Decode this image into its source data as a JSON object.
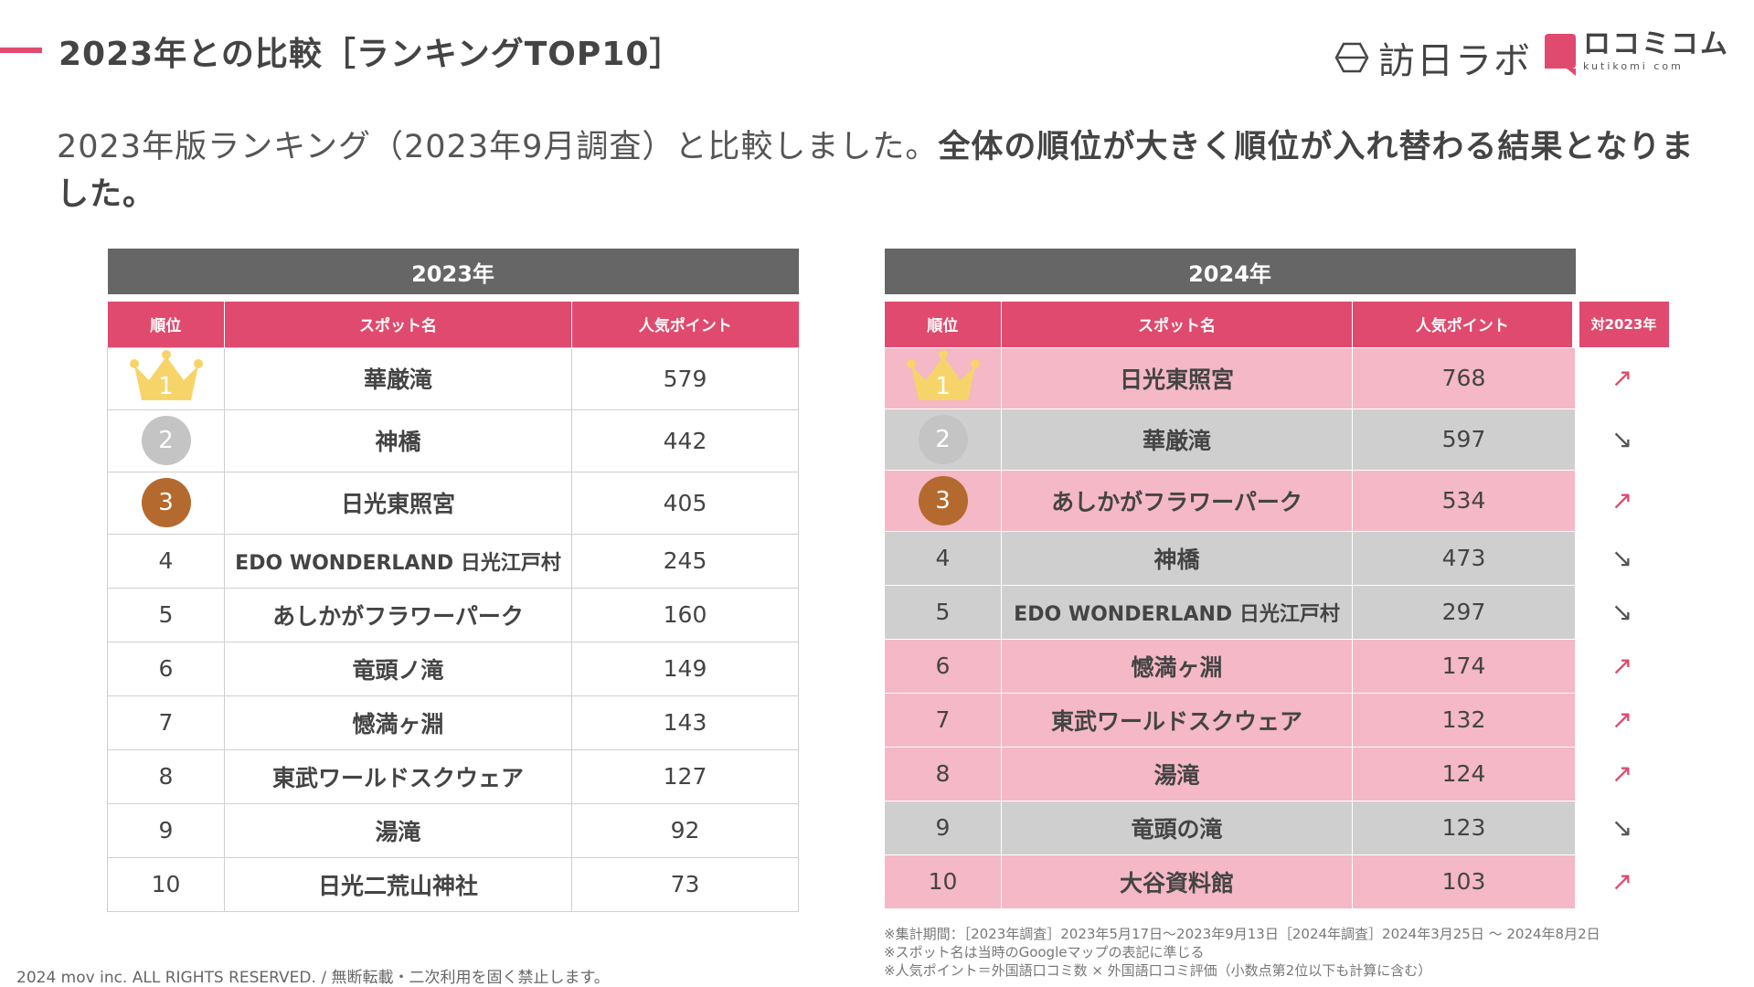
{
  "header": {
    "title": "2023年との比較［ランキングTOP10］",
    "logo_houbei": "訪日ラボ",
    "logo_kuchikomi": "ロコミコム",
    "logo_kuchikomi_sub": "kutikomi com"
  },
  "lead": {
    "normal": "2023年版ランキング（2023年9月調査）と比較しました。",
    "bold": "全体の順位が大きく順位が入れ替わる結果となりました。"
  },
  "table_2023": {
    "year": "2023年",
    "headers": [
      "順位",
      "スポット名",
      "人気ポイント"
    ],
    "rows": [
      {
        "rank": "1",
        "name": "華厳滝",
        "points": "579"
      },
      {
        "rank": "2",
        "name": "神橋",
        "points": "442"
      },
      {
        "rank": "3",
        "name": "日光東照宮",
        "points": "405"
      },
      {
        "rank": "4",
        "name": "EDO WONDERLAND 日光江戸村",
        "points": "245"
      },
      {
        "rank": "5",
        "name": "あしかがフラワーパーク",
        "points": "160"
      },
      {
        "rank": "6",
        "name": "竜頭ノ滝",
        "points": "149"
      },
      {
        "rank": "7",
        "name": "憾満ヶ淵",
        "points": "143"
      },
      {
        "rank": "8",
        "name": "東武ワールドスクウェア",
        "points": "127"
      },
      {
        "rank": "9",
        "name": "湯滝",
        "points": "92"
      },
      {
        "rank": "10",
        "name": "日光二荒山神社",
        "points": "73"
      }
    ]
  },
  "table_2024": {
    "year": "2024年",
    "headers": [
      "順位",
      "スポット名",
      "人気ポイント"
    ],
    "trend_header": "対2023年",
    "rows": [
      {
        "rank": "1",
        "name": "日光東照宮",
        "points": "768",
        "trend": "↗",
        "dir": "up"
      },
      {
        "rank": "2",
        "name": "華厳滝",
        "points": "597",
        "trend": "↘",
        "dir": "down"
      },
      {
        "rank": "3",
        "name": "あしかがフラワーパーク",
        "points": "534",
        "trend": "↗",
        "dir": "up"
      },
      {
        "rank": "4",
        "name": "神橋",
        "points": "473",
        "trend": "↘",
        "dir": "down"
      },
      {
        "rank": "5",
        "name": "EDO WONDERLAND 日光江戸村",
        "points": "297",
        "trend": "↘",
        "dir": "down"
      },
      {
        "rank": "6",
        "name": "憾満ヶ淵",
        "points": "174",
        "trend": "↗",
        "dir": "up"
      },
      {
        "rank": "7",
        "name": "東武ワールドスクウェア",
        "points": "132",
        "trend": "↗",
        "dir": "up"
      },
      {
        "rank": "8",
        "name": "湯滝",
        "points": "124",
        "trend": "↗",
        "dir": "up"
      },
      {
        "rank": "9",
        "name": "竜頭の滝",
        "points": "123",
        "trend": "↘",
        "dir": "down"
      },
      {
        "rank": "10",
        "name": "大谷資料館",
        "points": "103",
        "trend": "↗",
        "dir": "up"
      }
    ]
  },
  "notes": [
    "※集計期間：［2023年調査］2023年5月17日〜2023年9月13日［2024年調査］2024年3月25日 〜 2024年8月2日",
    "※スポット名は当時のGoogleマップの表記に準じる",
    "※人気ポイント＝外国語口コミ数 × 外国語口コミ評価（小数点第2位以下も計算に含む）"
  ],
  "footer": "2024 mov inc. ALL RIGHTS RESERVED. / 無断転載・二次利用を固く禁止します。",
  "colors": {
    "accent": "#e04a6e",
    "header_grey": "#666666",
    "row_pink": "#f4b8c6",
    "row_grey": "#cfcfcf",
    "gold": "#f7d46a",
    "silver": "#c4c4c4",
    "bronze": "#b46a2e"
  },
  "icons": {
    "rank1": "crown-icon",
    "rank2": "silver-medal-icon",
    "rank3": "bronze-medal-icon"
  }
}
